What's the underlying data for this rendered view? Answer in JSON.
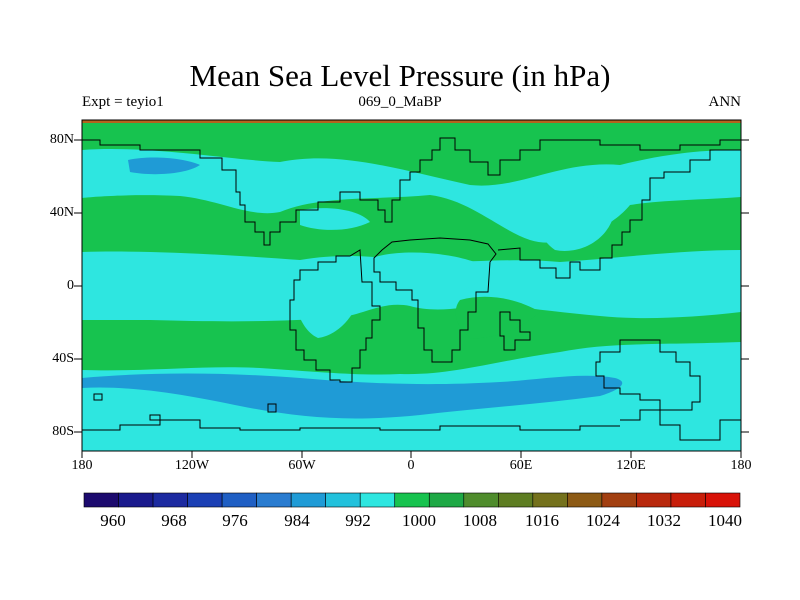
{
  "map": {
    "title": "Mean Sea Level Pressure (in hPa)",
    "experiment_label": "Expt = teyio1",
    "subtitle": "069_0_MaBP",
    "period": "ANN",
    "lat_ticks": [
      "80N",
      "40N",
      "0",
      "40S",
      "80S"
    ],
    "lon_ticks": [
      "180",
      "120W",
      "60W",
      "0",
      "60E",
      "120E",
      "180"
    ],
    "colorbar": {
      "unit": "hPa",
      "labels": [
        "960",
        "968",
        "976",
        "984",
        "992",
        "1000",
        "1008",
        "1016",
        "1024",
        "1032",
        "1040"
      ],
      "colors": [
        "#1c0a6e",
        "#1a1a8c",
        "#1c2aa0",
        "#1b3fb4",
        "#1f5fc4",
        "#2a7cd0",
        "#1f9bd6",
        "#22c1dc",
        "#2ee6e0",
        "#17c34f",
        "#1ea845",
        "#4f8c2c",
        "#5e7d22",
        "#74711c",
        "#8c5a14",
        "#a23f10",
        "#b8280c",
        "#c81e0a",
        "#d81208"
      ]
    },
    "colors": {
      "ocean_low": "#1f9bd6",
      "ocean_mid": "#2ee6e0",
      "high": "#17c34f",
      "top_band": "#b4641e"
    }
  }
}
